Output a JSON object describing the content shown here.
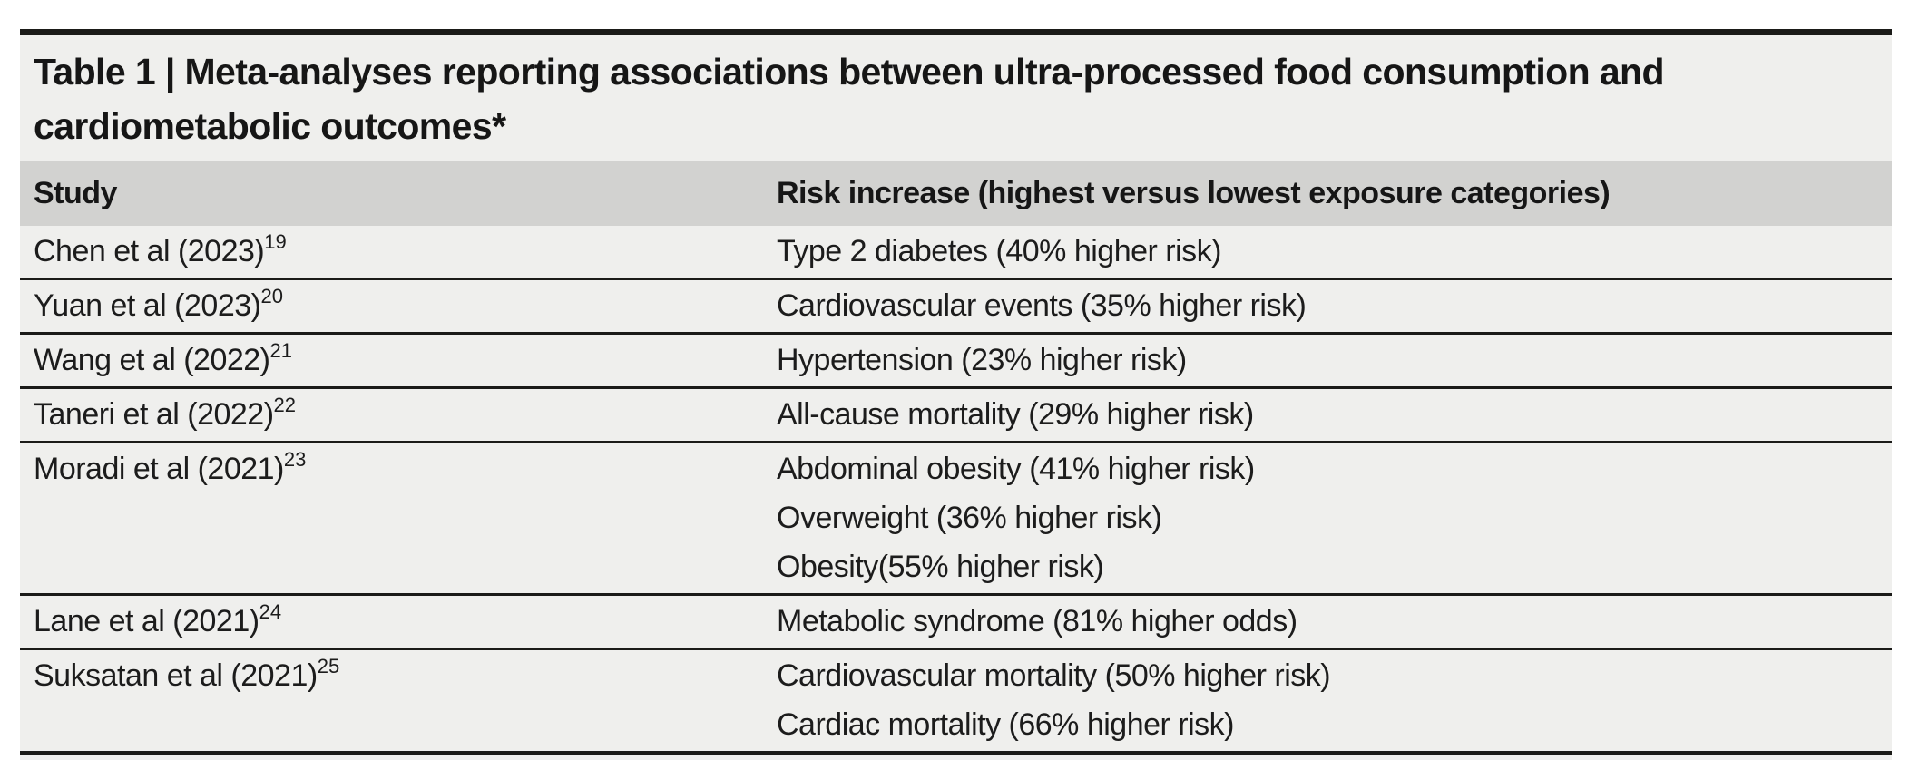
{
  "table": {
    "title": "Table 1 | Meta-analyses reporting associations between ultra-processed food consumption and cardiometabolic outcomes*",
    "columns": {
      "study": "Study",
      "risk": "Risk increase (highest versus lowest exposure categories)"
    },
    "rows": [
      {
        "study": "Chen et al (2023)",
        "reference": "19",
        "outcomes": [
          "Type 2 diabetes (40% higher risk)"
        ]
      },
      {
        "study": "Yuan et al (2023)",
        "reference": "20",
        "outcomes": [
          "Cardiovascular events (35% higher risk)"
        ]
      },
      {
        "study": "Wang et al (2022)",
        "reference": "21",
        "outcomes": [
          "Hypertension (23% higher risk)"
        ]
      },
      {
        "study": "Taneri et al (2022)",
        "reference": "22",
        "outcomes": [
          "All-cause mortality (29% higher risk)"
        ]
      },
      {
        "study": "Moradi et al (2021)",
        "reference": "23",
        "outcomes": [
          "Abdominal obesity (41% higher risk)",
          "Overweight (36% higher risk)",
          "Obesity(55% higher risk)"
        ]
      },
      {
        "study": "Lane et al (2021)",
        "reference": "24",
        "outcomes": [
          "Metabolic syndrome (81% higher odds)"
        ]
      },
      {
        "study": "Suksatan et al (2021)",
        "reference": "25",
        "outcomes": [
          "Cardiovascular mortality (50% higher risk)",
          "Cardiac mortality (66% higher risk)"
        ]
      }
    ],
    "colors": {
      "table_background": "#efefed",
      "header_band": "#d2d2d0",
      "rule": "#1b1b18",
      "text": "#1c1c1c"
    }
  }
}
